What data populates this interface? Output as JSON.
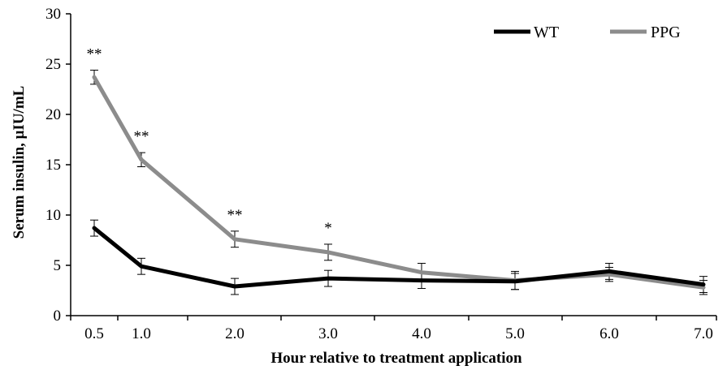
{
  "chart_data": {
    "type": "line",
    "title": "",
    "xlabel": "Hour relative to treatment application",
    "ylabel": "Serum insulin, μIU/mL",
    "categories": [
      "0.5",
      "1.0",
      "2.0",
      "3.0",
      "4.0",
      "5.0",
      "6.0",
      "7.0"
    ],
    "x": [
      0.5,
      1.0,
      2.0,
      3.0,
      4.0,
      5.0,
      6.0,
      7.0
    ],
    "xlim": [
      0.5,
      7.0
    ],
    "ylim": [
      0,
      30
    ],
    "yticks": [
      "0",
      "5",
      "10",
      "15",
      "20",
      "25",
      "30"
    ],
    "grid": false,
    "legend_position": "top-right",
    "series": [
      {
        "name": "WT",
        "color": "#000000",
        "values": [
          8.7,
          4.9,
          2.9,
          3.7,
          3.5,
          3.4,
          4.4,
          3.1
        ],
        "errors": [
          0.8,
          0.8,
          0.8,
          0.8,
          0.8,
          0.8,
          0.8,
          0.8
        ]
      },
      {
        "name": "PPG",
        "color": "#8c8c8c",
        "values": [
          23.7,
          15.5,
          7.6,
          6.3,
          4.3,
          3.5,
          4.1,
          2.8
        ],
        "errors": [
          0.7,
          0.7,
          0.8,
          0.8,
          0.9,
          0.9,
          0.7,
          0.7
        ]
      }
    ],
    "annotations": [
      "**",
      "**",
      "**",
      "*",
      "",
      "",
      "",
      ""
    ]
  }
}
